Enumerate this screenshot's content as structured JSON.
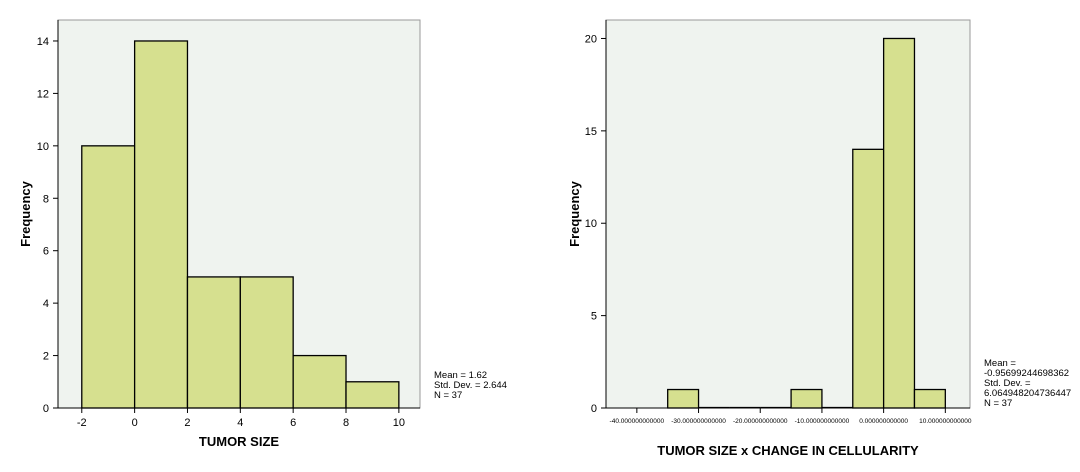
{
  "colors": {
    "bar_fill": "#d6e08f",
    "bar_stroke": "#000000",
    "plot_background": "#eff3ef",
    "frame": "#9a9a9a"
  },
  "chart_data": [
    {
      "type": "bar",
      "subtype": "histogram",
      "xlabel": "TUMOR SIZE",
      "ylabel": "Frequency",
      "xlim": [
        -2.9,
        10.8
      ],
      "ylim": [
        0,
        14.8
      ],
      "x_ticks": [
        -2,
        0,
        2,
        4,
        6,
        8,
        10
      ],
      "x_tick_labels": [
        "-2",
        "0",
        "2",
        "4",
        "6",
        "8",
        "10"
      ],
      "y_ticks": [
        0,
        2,
        4,
        6,
        8,
        10,
        12,
        14
      ],
      "y_tick_labels": [
        "0",
        "2",
        "4",
        "6",
        "8",
        "10",
        "12",
        "14"
      ],
      "bins": [
        {
          "from": -2,
          "to": 0,
          "value": 10
        },
        {
          "from": 0,
          "to": 2,
          "value": 14
        },
        {
          "from": 2,
          "to": 4,
          "value": 5
        },
        {
          "from": 4,
          "to": 6,
          "value": 5
        },
        {
          "from": 6,
          "to": 8,
          "value": 2
        },
        {
          "from": 8,
          "to": 10,
          "value": 1
        }
      ],
      "stats": [
        "Mean = 1.62",
        "Std. Dev. = 2.644",
        "N = 37"
      ],
      "grid": false
    },
    {
      "type": "bar",
      "subtype": "histogram",
      "xlabel": "TUMOR SIZE x CHANGE IN CELLULARITY",
      "ylabel": "Frequency",
      "xlim": [
        -45,
        14
      ],
      "ylim": [
        0,
        21
      ],
      "x_ticks": [
        -40,
        -30,
        -20,
        -10,
        0,
        10
      ],
      "x_tick_labels": [
        "-40.000000000000",
        "-30.000000000000",
        "-20.000000000000",
        "-10.000000000000",
        "0.000000000000",
        "10.000000000000"
      ],
      "y_ticks": [
        0,
        5,
        10,
        15,
        20
      ],
      "y_tick_labels": [
        "0",
        "5",
        "10",
        "15",
        "20"
      ],
      "bins": [
        {
          "from": -35,
          "to": -30,
          "value": 1
        },
        {
          "from": -30,
          "to": -25,
          "value": 0
        },
        {
          "from": -25,
          "to": -20,
          "value": 0
        },
        {
          "from": -20,
          "to": -15,
          "value": 0
        },
        {
          "from": -15,
          "to": -10,
          "value": 1
        },
        {
          "from": -10,
          "to": -5,
          "value": 0
        },
        {
          "from": -5,
          "to": 0,
          "value": 14
        },
        {
          "from": 0,
          "to": 5,
          "value": 20
        },
        {
          "from": 5,
          "to": 10,
          "value": 1
        }
      ],
      "stats": [
        "Mean =",
        "-0.95699244698362",
        "Std. Dev. =",
        "6.064948204736447",
        "N = 37"
      ],
      "grid": false
    }
  ]
}
